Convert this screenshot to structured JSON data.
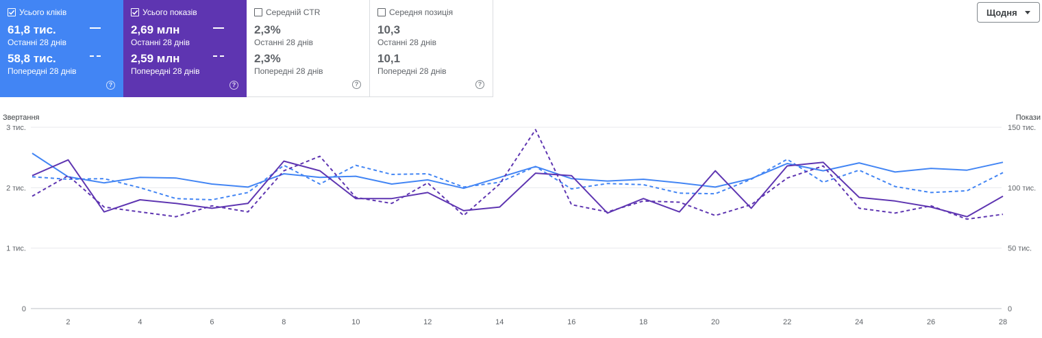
{
  "cards": [
    {
      "title": "Усього кліків",
      "checked": true,
      "value_current": "61,8 тис.",
      "label_current": "Останні 28 днів",
      "value_previous": "58,8 тис.",
      "label_previous": "Попередні 28 днів",
      "help": "?",
      "bg": "#4285f4"
    },
    {
      "title": "Усього показів",
      "checked": true,
      "value_current": "2,69 млн",
      "label_current": "Останні 28 днів",
      "value_previous": "2,59 млн",
      "label_previous": "Попередні 28 днів",
      "help": "?",
      "bg": "#5e35b1"
    },
    {
      "title": "Середній CTR",
      "checked": false,
      "value_current": "2,3%",
      "label_current": "Останні 28 днів",
      "value_previous": "2,3%",
      "label_previous": "Попередні 28 днів",
      "help": "?"
    },
    {
      "title": "Середня позиція",
      "checked": false,
      "value_current": "10,3",
      "label_current": "Останні 28 днів",
      "value_previous": "10,1",
      "label_previous": "Попередні 28 днів",
      "help": "?"
    }
  ],
  "period_select": {
    "value": "Щодня"
  },
  "icons": {
    "checkbox": "checkbox-icon",
    "help": "help-circle-icon",
    "dropdown": "caret-down-icon"
  },
  "chart_data": {
    "type": "line",
    "x": [
      1,
      2,
      3,
      4,
      5,
      6,
      7,
      8,
      9,
      10,
      11,
      12,
      13,
      14,
      15,
      16,
      17,
      18,
      19,
      20,
      21,
      22,
      23,
      24,
      25,
      26,
      27,
      28
    ],
    "xticks": [
      "2",
      "4",
      "6",
      "8",
      "10",
      "12",
      "14",
      "16",
      "18",
      "20",
      "22",
      "24",
      "26",
      "28"
    ],
    "xtick_values": [
      2,
      4,
      6,
      8,
      10,
      12,
      14,
      16,
      18,
      20,
      22,
      24,
      26,
      28
    ],
    "left_axis": {
      "label": "Звертання",
      "ticks": [
        "0",
        "1 тис.",
        "2 тис.",
        "3 тис."
      ],
      "tick_values": [
        0,
        1000,
        2000,
        3000
      ],
      "ylim": [
        0,
        3000
      ]
    },
    "right_axis": {
      "label": "Покази",
      "ticks": [
        "0",
        "50 тис.",
        "100 тис.",
        "150 тис."
      ],
      "tick_values": [
        0,
        50000,
        100000,
        150000
      ],
      "ylim": [
        0,
        150000
      ]
    },
    "grid": true,
    "series": [
      {
        "axis": "left",
        "color": "#4285f4",
        "dashed": false,
        "values": [
          2570,
          2180,
          2080,
          2170,
          2160,
          2060,
          2010,
          2230,
          2170,
          2190,
          2060,
          2130,
          1990,
          2170,
          2350,
          2150,
          2110,
          2140,
          2080,
          2010,
          2150,
          2400,
          2280,
          2410,
          2260,
          2320,
          2290,
          2420
        ]
      },
      {
        "axis": "left",
        "color": "#4285f4",
        "dashed": true,
        "values": [
          2180,
          2140,
          2150,
          2000,
          1820,
          1800,
          1920,
          2370,
          2060,
          2370,
          2220,
          2230,
          2010,
          2090,
          2350,
          1980,
          2070,
          2050,
          1910,
          1900,
          2140,
          2470,
          2090,
          2290,
          2020,
          1920,
          1950,
          2250
        ]
      },
      {
        "axis": "right",
        "color": "#5e35b1",
        "dashed": false,
        "values": [
          110000,
          123000,
          80000,
          90000,
          87000,
          83000,
          87000,
          122000,
          114000,
          91000,
          91000,
          96000,
          81000,
          84000,
          112000,
          110000,
          79000,
          91000,
          80000,
          114000,
          83000,
          118000,
          121000,
          92000,
          89000,
          84000,
          76000,
          93000
        ]
      },
      {
        "axis": "right",
        "color": "#5e35b1",
        "dashed": true,
        "values": [
          93000,
          110000,
          84000,
          80000,
          76000,
          85000,
          80000,
          114000,
          126000,
          92000,
          87000,
          104000,
          77000,
          103000,
          148000,
          86000,
          80000,
          89000,
          88000,
          77000,
          86000,
          108000,
          118000,
          83000,
          79000,
          85000,
          74000,
          78000
        ]
      }
    ]
  }
}
